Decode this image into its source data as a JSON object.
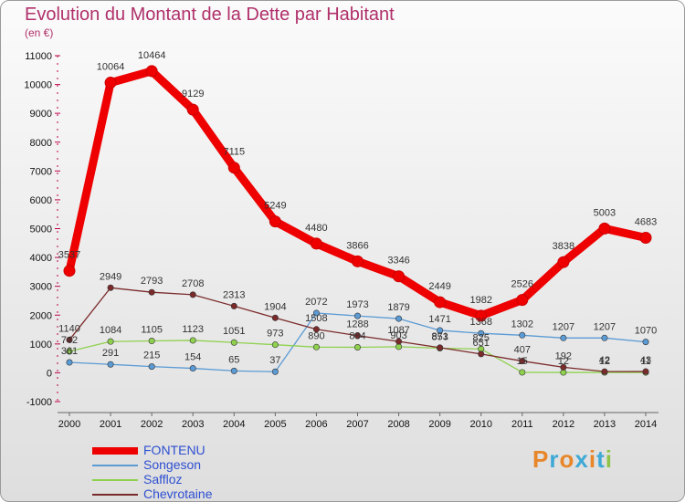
{
  "title": "Evolution du Montant de la Dette par Habitant",
  "subtitle": "(en €)",
  "logo": {
    "text": "Proxiti",
    "colors": [
      "#e8862a",
      "#3fa9d6",
      "#e8862a",
      "#3fa9d6",
      "#e8862a",
      "#3fa9d6",
      "#8fc34a"
    ]
  },
  "chart_data": {
    "type": "line",
    "title": "Evolution du Montant de la Dette par Habitant",
    "subtitle": "(en €)",
    "x": [
      "2000",
      "2001",
      "2002",
      "2003",
      "2004",
      "2005",
      "2006",
      "2007",
      "2008",
      "2009",
      "2010",
      "2011",
      "2012",
      "2013",
      "2014"
    ],
    "yticks": [
      "-1000",
      "0",
      "1000",
      "2000",
      "3000",
      "4000",
      "5000",
      "6000",
      "7000",
      "8000",
      "9000",
      "10000",
      "11000"
    ],
    "ylim": [
      -1000,
      11000
    ],
    "grid": false,
    "legend_position": "bottom-left",
    "series": [
      {
        "name": "FONTENU",
        "color": "#ee0000",
        "values": [
          3537,
          10064,
          10464,
          9129,
          7115,
          5249,
          4480,
          3866,
          3346,
          2449,
          1982,
          2526,
          3838,
          5003,
          4683
        ]
      },
      {
        "name": "Songeson",
        "color": "#5b9bd5",
        "values": [
          361,
          291,
          215,
          154,
          65,
          37,
          2072,
          1973,
          1879,
          1471,
          1368,
          1302,
          1207,
          1207,
          1070
        ]
      },
      {
        "name": "Saffloz",
        "color": "#8fd14f",
        "values": [
          742,
          1084,
          1105,
          1123,
          1051,
          973,
          890,
          884,
          903,
          853,
          825,
          15,
          12,
          12,
          11
        ]
      },
      {
        "name": "Chevrotaine",
        "color": "#7b2a2a",
        "values": [
          1140,
          2949,
          2793,
          2708,
          2313,
          1904,
          1508,
          1288,
          1087,
          871,
          651,
          407,
          192,
          42,
          43
        ]
      }
    ]
  }
}
